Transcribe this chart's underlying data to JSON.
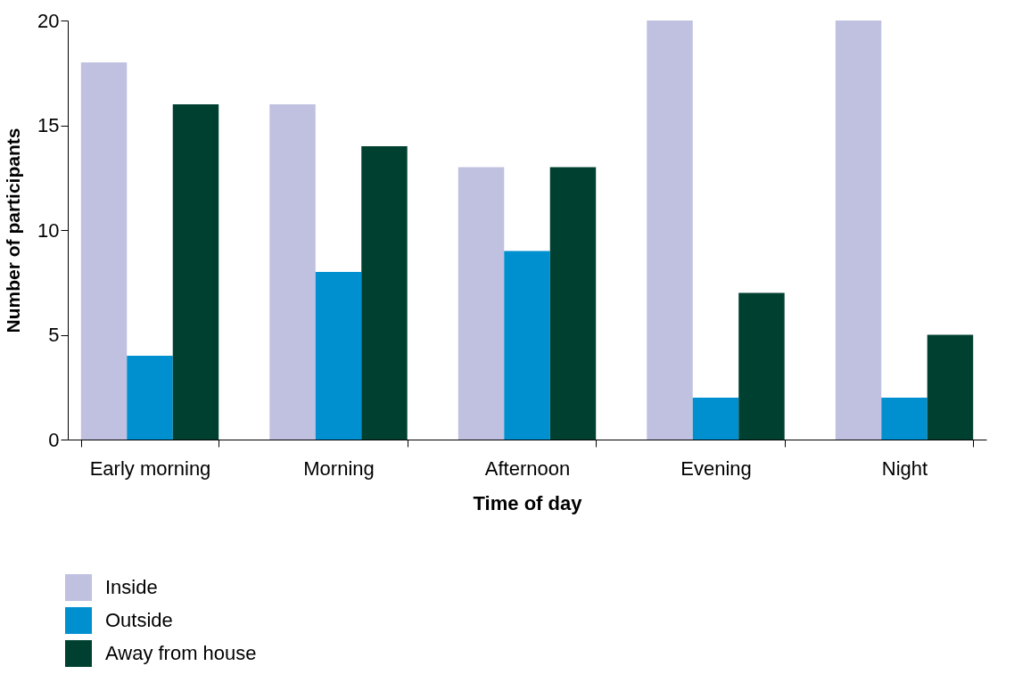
{
  "chart_data": {
    "type": "bar",
    "xlabel": "Time of day",
    "ylabel": "Number of participants",
    "categories": [
      "Early morning",
      "Morning",
      "Afternoon",
      "Evening",
      "Night"
    ],
    "series": [
      {
        "name": "Inside",
        "color": "#c0c0e0",
        "values": [
          18,
          16,
          13,
          20,
          20
        ]
      },
      {
        "name": "Outside",
        "color": "#0090d0",
        "values": [
          4,
          8,
          9,
          2,
          2
        ]
      },
      {
        "name": "Away from house",
        "color": "#004030",
        "values": [
          16,
          14,
          13,
          7,
          5
        ]
      }
    ],
    "ylim": [
      0,
      20
    ],
    "yticks": [
      0,
      5,
      10,
      15,
      20
    ],
    "legend": "bottom left"
  }
}
